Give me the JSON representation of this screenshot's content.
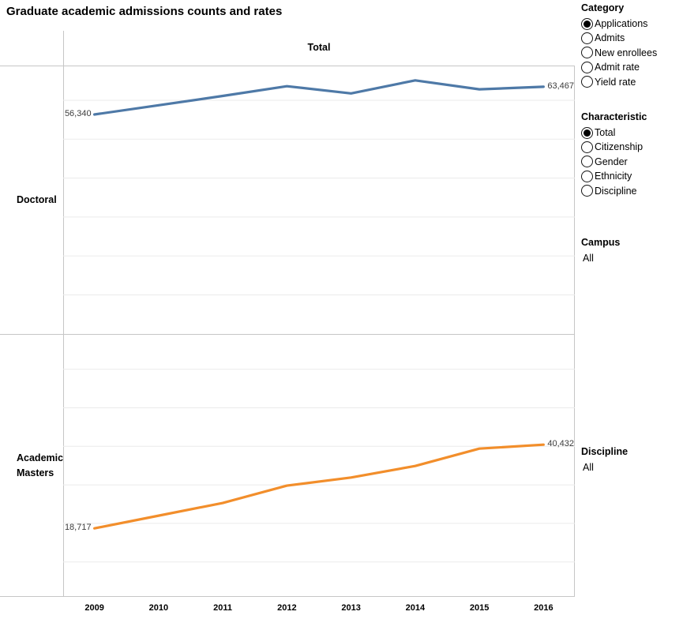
{
  "title": "Graduate academic admissions counts and rates",
  "column_header": "Total",
  "chart_data": {
    "type": "line",
    "x_categories": [
      "2009",
      "2010",
      "2011",
      "2012",
      "2013",
      "2014",
      "2015",
      "2016"
    ],
    "xlabel": "",
    "ylabel": "",
    "grid": "horizontal",
    "y_gridline_values": [
      10000,
      20000,
      30000,
      40000,
      50000,
      60000
    ],
    "y_axis_range": [
      0,
      69000
    ],
    "panels": [
      {
        "row_label": "Doctoral",
        "series_name": "Applications",
        "color": "#4e79a7",
        "values": [
          56340,
          58700,
          61100,
          63600,
          61750,
          65100,
          62800,
          63467
        ],
        "endpoint_labels": {
          "first": "56,340",
          "last": "63,467"
        }
      },
      {
        "row_label": "Academic Masters",
        "series_name": "Applications",
        "color": "#f28e2b",
        "values": [
          18717,
          22000,
          25300,
          29800,
          31900,
          34900,
          39400,
          40432
        ],
        "endpoint_labels": {
          "first": "18,717",
          "last": "40,432"
        }
      }
    ]
  },
  "filters": {
    "category": {
      "label": "Category",
      "options": [
        "Applications",
        "Admits",
        "New enrollees",
        "Admit rate",
        "Yield rate"
      ],
      "selected": "Applications"
    },
    "characteristic": {
      "label": "Characteristic",
      "options": [
        "Total",
        "Citizenship",
        "Gender",
        "Ethnicity",
        "Discipline"
      ],
      "selected": "Total"
    },
    "campus": {
      "label": "Campus",
      "value": "All"
    },
    "discipline": {
      "label": "Discipline",
      "value": "All"
    }
  }
}
